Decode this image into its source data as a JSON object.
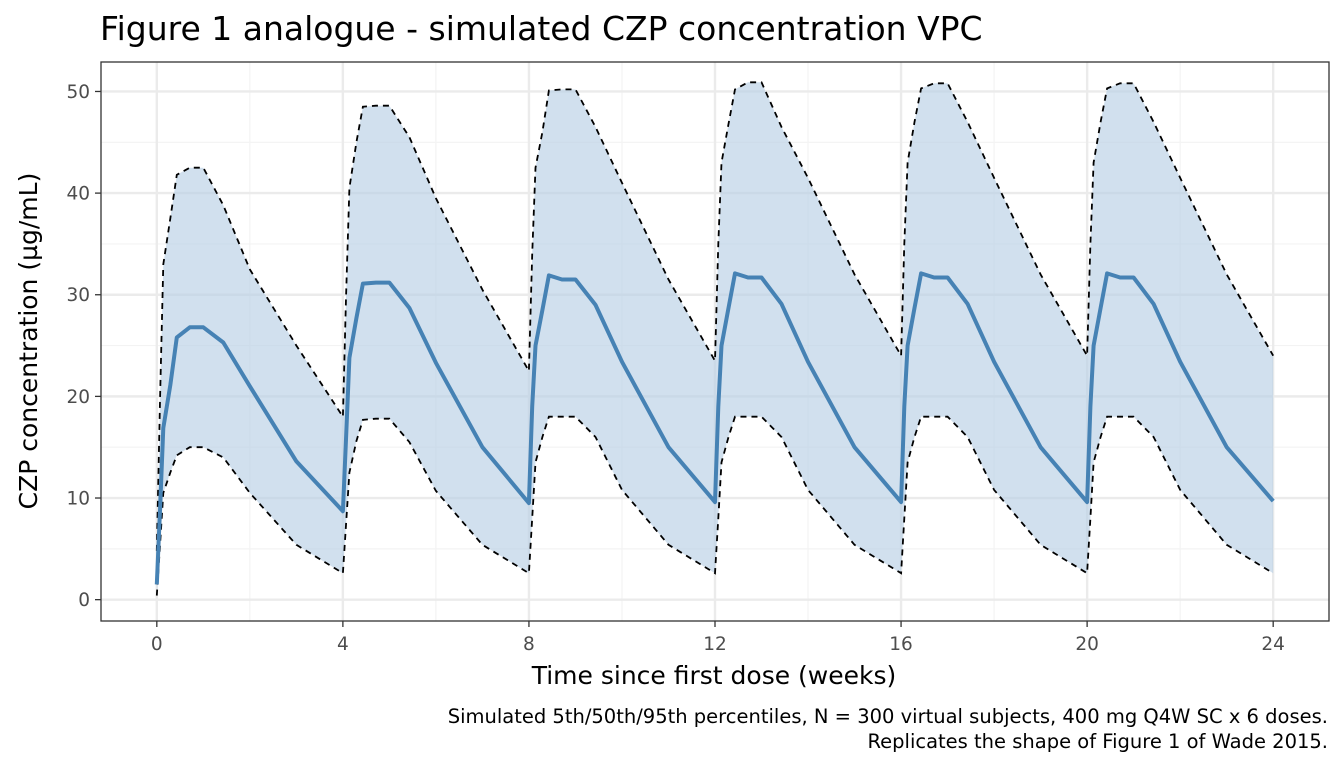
{
  "chart_data": {
    "type": "line",
    "title": "Figure 1 analogue - simulated CZP concentration VPC",
    "xlabel": "Time since first dose (weeks)",
    "ylabel": "CZP concentration (µg/mL)",
    "caption": [
      "Simulated 5th/50th/95th percentiles, N = 300 virtual subjects, 400 mg Q4W SC x 6 doses.",
      "Replicates the shape of Figure 1 of Wade 2015."
    ],
    "xlim": [
      -1.2,
      25.2
    ],
    "ylim": [
      -2.1,
      52.9
    ],
    "xticks": [
      0,
      4,
      8,
      12,
      16,
      20,
      24
    ],
    "xtick_labels": [
      "0",
      "4",
      "8",
      "12",
      "16",
      "20",
      "24"
    ],
    "xminor": [
      2,
      6,
      10,
      14,
      18,
      22
    ],
    "yticks": [
      0,
      10,
      20,
      30,
      40,
      50
    ],
    "ytick_labels": [
      "0",
      "10",
      "20",
      "30",
      "40",
      "50"
    ],
    "yminor": [
      5,
      15,
      25,
      35,
      45
    ],
    "grid": true,
    "legend": "none",
    "colors": {
      "median": "#4682B4",
      "band": "#B9CFE5",
      "bounds": "#000000",
      "panel_border": "#333333",
      "grid_major": "#EBEBEB",
      "grid_minor": "#F3F3F3"
    },
    "x": [
      0,
      0.07,
      0.14,
      0.29,
      0.43,
      0.71,
      1.0,
      1.43,
      2.0,
      3.0,
      4.0,
      4.07,
      4.14,
      4.29,
      4.43,
      4.71,
      5.0,
      5.43,
      6.0,
      7.0,
      8.0,
      8.07,
      8.14,
      8.29,
      8.43,
      8.71,
      9.0,
      9.43,
      10.0,
      11.0,
      12.0,
      12.07,
      12.14,
      12.29,
      12.43,
      12.71,
      13.0,
      13.43,
      14.0,
      15.0,
      16.0,
      16.07,
      16.14,
      16.29,
      16.43,
      16.71,
      17.0,
      17.43,
      18.0,
      19.0,
      20.0,
      20.07,
      20.14,
      20.29,
      20.43,
      20.71,
      21.0,
      21.43,
      22.0,
      23.0,
      24.0
    ],
    "series": [
      {
        "name": "95th percentile",
        "style": "dashed",
        "values": [
          4.8,
          20.0,
          33.0,
          37.5,
          41.8,
          42.5,
          42.5,
          38.8,
          32.5,
          25.0,
          18.0,
          30.0,
          40.5,
          45.0,
          48.5,
          48.6,
          48.6,
          45.5,
          39.5,
          30.5,
          22.5,
          34.0,
          42.5,
          46.0,
          50.1,
          50.2,
          50.2,
          46.5,
          41.0,
          31.5,
          23.5,
          35.0,
          43.0,
          46.8,
          50.2,
          50.9,
          50.9,
          46.5,
          41.5,
          32.0,
          24.0,
          35.0,
          43.0,
          47.0,
          50.3,
          50.8,
          50.8,
          47.0,
          41.5,
          32.0,
          24.0,
          35.0,
          43.0,
          47.0,
          50.3,
          50.8,
          50.8,
          47.0,
          41.5,
          32.0,
          24.0
        ]
      },
      {
        "name": "Median (50th percentile)",
        "style": "solid",
        "values": [
          1.5,
          9.0,
          16.9,
          21.1,
          25.8,
          26.8,
          26.8,
          25.3,
          21.0,
          13.6,
          8.7,
          16.0,
          23.8,
          27.7,
          31.1,
          31.2,
          31.2,
          28.7,
          23.3,
          15.0,
          9.5,
          19.0,
          25.0,
          28.5,
          31.9,
          31.5,
          31.5,
          29.0,
          23.4,
          15.0,
          9.6,
          19.0,
          25.0,
          28.7,
          32.1,
          31.7,
          31.7,
          29.1,
          23.4,
          15.0,
          9.6,
          19.0,
          25.0,
          28.7,
          32.1,
          31.7,
          31.7,
          29.1,
          23.4,
          15.0,
          9.6,
          19.0,
          25.0,
          28.7,
          32.1,
          31.7,
          31.7,
          29.1,
          23.4,
          15.0,
          9.7
        ]
      },
      {
        "name": "5th percentile",
        "style": "dashed",
        "values": [
          0.4,
          5.5,
          10.5,
          12.5,
          14.2,
          15.0,
          15.0,
          14.0,
          10.5,
          5.4,
          2.6,
          7.5,
          12.5,
          15.6,
          17.7,
          17.8,
          17.8,
          15.5,
          10.7,
          5.4,
          2.6,
          8.0,
          13.5,
          16.0,
          18.0,
          18.0,
          18.0,
          16.0,
          10.8,
          5.4,
          2.6,
          8.0,
          13.5,
          16.0,
          18.0,
          18.0,
          18.0,
          16.0,
          10.8,
          5.4,
          2.6,
          8.0,
          13.5,
          16.0,
          18.0,
          18.0,
          18.0,
          16.0,
          10.8,
          5.4,
          2.6,
          8.0,
          13.5,
          16.0,
          18.0,
          18.0,
          18.0,
          16.0,
          10.8,
          5.4,
          2.6
        ]
      }
    ]
  }
}
